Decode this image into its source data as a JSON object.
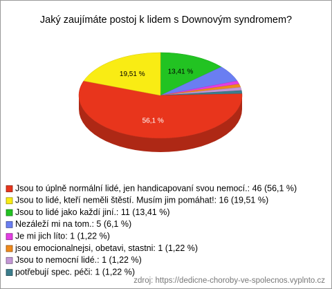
{
  "chart_data": {
    "type": "pie3d",
    "title": "Jaký zaujímáte postoj k lidem s Downovým syndromem?",
    "categories": [
      "Jsou to úplně normální lidé, jen handicapovaní svou nemocí.: 46 (56,1 %)",
      "Jsou to lidé, kteří neměli štěstí. Musím jim pomáhat!: 16 (19,51 %)",
      "Jsou to lidé jako každí jiní.: 11 (13,41 %)",
      "Nezáleží mi na tom.: 5 (6,1 %)",
      "Je mi jich líto: 1 (1,22 %)",
      "jsou emocionalnejsi, obetavi, stastni: 1 (1,22 %)",
      "Jsou to nemocní lidé.: 1 (1,22 %)",
      "potřebují spec. péči: 1 (1,22 %)"
    ],
    "values": [
      56.1,
      19.51,
      13.41,
      6.1,
      1.22,
      1.22,
      1.22,
      1.22
    ],
    "value_labels": [
      "56,1 %",
      "19,51 %",
      "13,41 %",
      null,
      null,
      null,
      null,
      null
    ],
    "colors": [
      "#e8351c",
      "#f9ec14",
      "#22c322",
      "#6a7ef2",
      "#e33ee3",
      "#f08a1c",
      "#c497d6",
      "#3b7d8c"
    ],
    "source": "zdroj: https://dedicne-choroby-ve-spolecnos.vyplnto.cz"
  }
}
